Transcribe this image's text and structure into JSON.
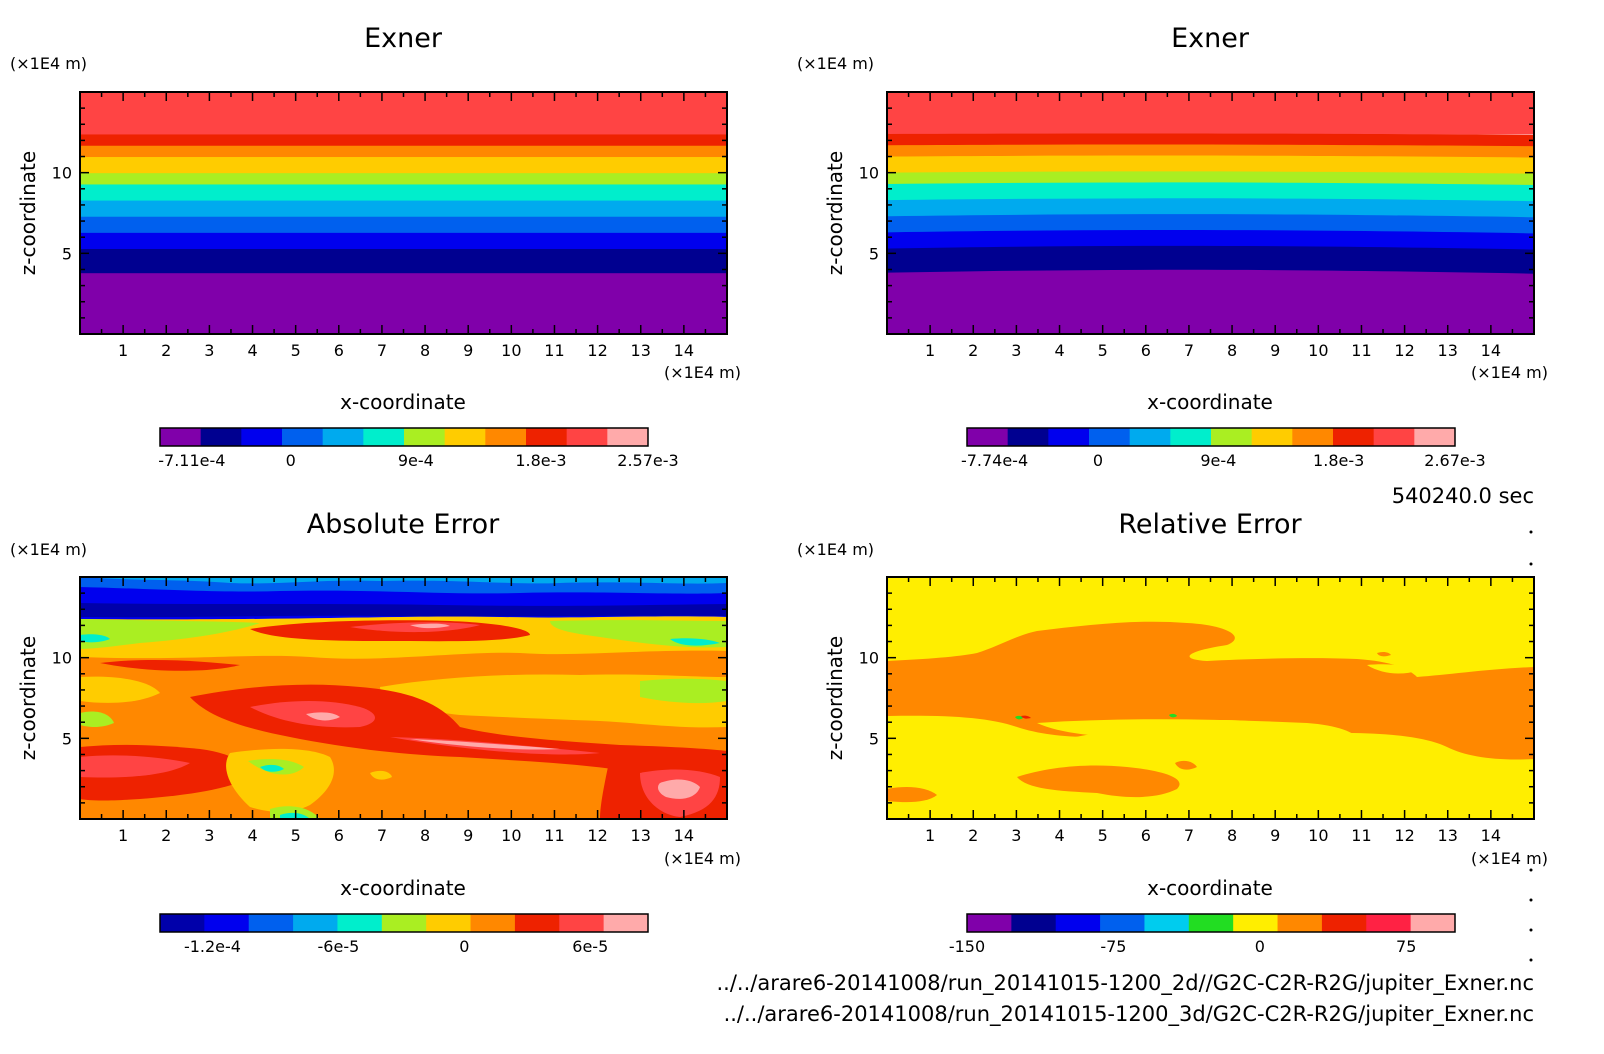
{
  "figure": {
    "time_label": "540240.0 sec",
    "file_paths": [
      "../../arare6-20141008/run_20141015-1200_2d//G2C-C2R-R2G/jupiter_Exner.nc",
      "../../arare6-20141008/run_20141015-1200_3d/G2C-C2R-R2G/jupiter_Exner.nc"
    ]
  },
  "chart_data": [
    {
      "type": "heatmap",
      "title": "Exner",
      "xlabel": "x-coordinate",
      "ylabel": "z-coordinate",
      "x_unit": "(×1E4 m)",
      "y_unit": "(×1E4 m)",
      "xlim": [
        0,
        15
      ],
      "ylim": [
        0,
        15
      ],
      "x_ticks": [
        "1",
        "2",
        "3",
        "4",
        "5",
        "6",
        "7",
        "8",
        "9",
        "10",
        "11",
        "12",
        "13",
        "14"
      ],
      "y_ticks": [
        "5",
        "10"
      ],
      "bands_z_top": [
        3.8,
        5.3,
        6.3,
        7.3,
        8.3,
        9.3,
        10.0,
        11.0,
        11.7,
        12.4,
        15.0
      ],
      "colorbar": {
        "colors": [
          "#8000aa",
          "#000090",
          "#0000ee",
          "#0060ee",
          "#00aaee",
          "#00eecc",
          "#aaee22",
          "#ffcc00",
          "#ff8800",
          "#ee2200",
          "#ff4444",
          "#ffaaaa"
        ],
        "tick_labels": [
          "-7.11e-4",
          "0",
          "9e-4",
          "1.8e-3",
          "2.57e-3"
        ],
        "tick_values": [
          -0.000711,
          0,
          0.0009,
          0.0018,
          0.00257
        ],
        "range": [
          -0.00094,
          0.00257
        ]
      }
    },
    {
      "type": "heatmap",
      "title": "Exner",
      "xlabel": "x-coordinate",
      "ylabel": "z-coordinate",
      "x_unit": "(×1E4 m)",
      "y_unit": "(×1E4 m)",
      "xlim": [
        0,
        15
      ],
      "ylim": [
        0,
        15
      ],
      "x_ticks": [
        "1",
        "2",
        "3",
        "4",
        "5",
        "6",
        "7",
        "8",
        "9",
        "10",
        "11",
        "12",
        "13",
        "14"
      ],
      "y_ticks": [
        "5",
        "10"
      ],
      "bands_z_top": [
        3.8,
        5.3,
        6.3,
        7.3,
        8.3,
        9.3,
        10.0,
        11.0,
        11.7,
        12.4,
        15.0
      ],
      "colorbar": {
        "colors": [
          "#8000aa",
          "#000090",
          "#0000ee",
          "#0060ee",
          "#00aaee",
          "#00eecc",
          "#aaee22",
          "#ffcc00",
          "#ff8800",
          "#ee2200",
          "#ff4444",
          "#ffaaaa"
        ],
        "tick_labels": [
          "-7.74e-4",
          "0",
          "9e-4",
          "1.8e-3",
          "2.67e-3"
        ],
        "tick_values": [
          -0.000774,
          0,
          0.0009,
          0.0018,
          0.00267
        ],
        "range": [
          -0.00098,
          0.00267
        ]
      }
    },
    {
      "type": "heatmap",
      "title": "Absolute Error",
      "xlabel": "x-coordinate",
      "ylabel": "z-coordinate",
      "x_unit": "(×1E4 m)",
      "y_unit": "(×1E4 m)",
      "xlim": [
        0,
        15
      ],
      "ylim": [
        0,
        15
      ],
      "x_ticks": [
        "1",
        "2",
        "3",
        "4",
        "5",
        "6",
        "7",
        "8",
        "9",
        "10",
        "11",
        "12",
        "13",
        "14"
      ],
      "y_ticks": [
        "5",
        "10"
      ],
      "colorbar": {
        "colors": [
          "#0000aa",
          "#0000ee",
          "#0060ee",
          "#00aaee",
          "#00eecc",
          "#aaee22",
          "#ffcc00",
          "#ff8800",
          "#ee2200",
          "#ff4444",
          "#ffaaaa"
        ],
        "tick_labels": [
          "-1.2e-4",
          "-6e-5",
          "0",
          "6e-5"
        ],
        "tick_values": [
          -0.00012,
          -6e-05,
          0,
          6e-05
        ],
        "range": [
          -0.000145,
          8.75e-05
        ]
      }
    },
    {
      "type": "heatmap",
      "title": "Relative Error",
      "xlabel": "x-coordinate",
      "ylabel": "z-coordinate",
      "x_unit": "(×1E4 m)",
      "y_unit": "(×1E4 m)",
      "xlim": [
        0,
        15
      ],
      "ylim": [
        0,
        15
      ],
      "x_ticks": [
        "1",
        "2",
        "3",
        "4",
        "5",
        "6",
        "7",
        "8",
        "9",
        "10",
        "11",
        "12",
        "13",
        "14"
      ],
      "y_ticks": [
        "5",
        "10"
      ],
      "colorbar": {
        "colors": [
          "#8000aa",
          "#000090",
          "#0000ee",
          "#0060ee",
          "#00ccee",
          "#22dd22",
          "#ffee00",
          "#ff8800",
          "#ee2200",
          "#ff2244",
          "#ffaaaa"
        ],
        "tick_labels": [
          "-150",
          "-75",
          "0",
          "75"
        ],
        "tick_values": [
          -150,
          -75,
          0,
          75
        ],
        "range": [
          -150,
          100
        ]
      }
    }
  ]
}
